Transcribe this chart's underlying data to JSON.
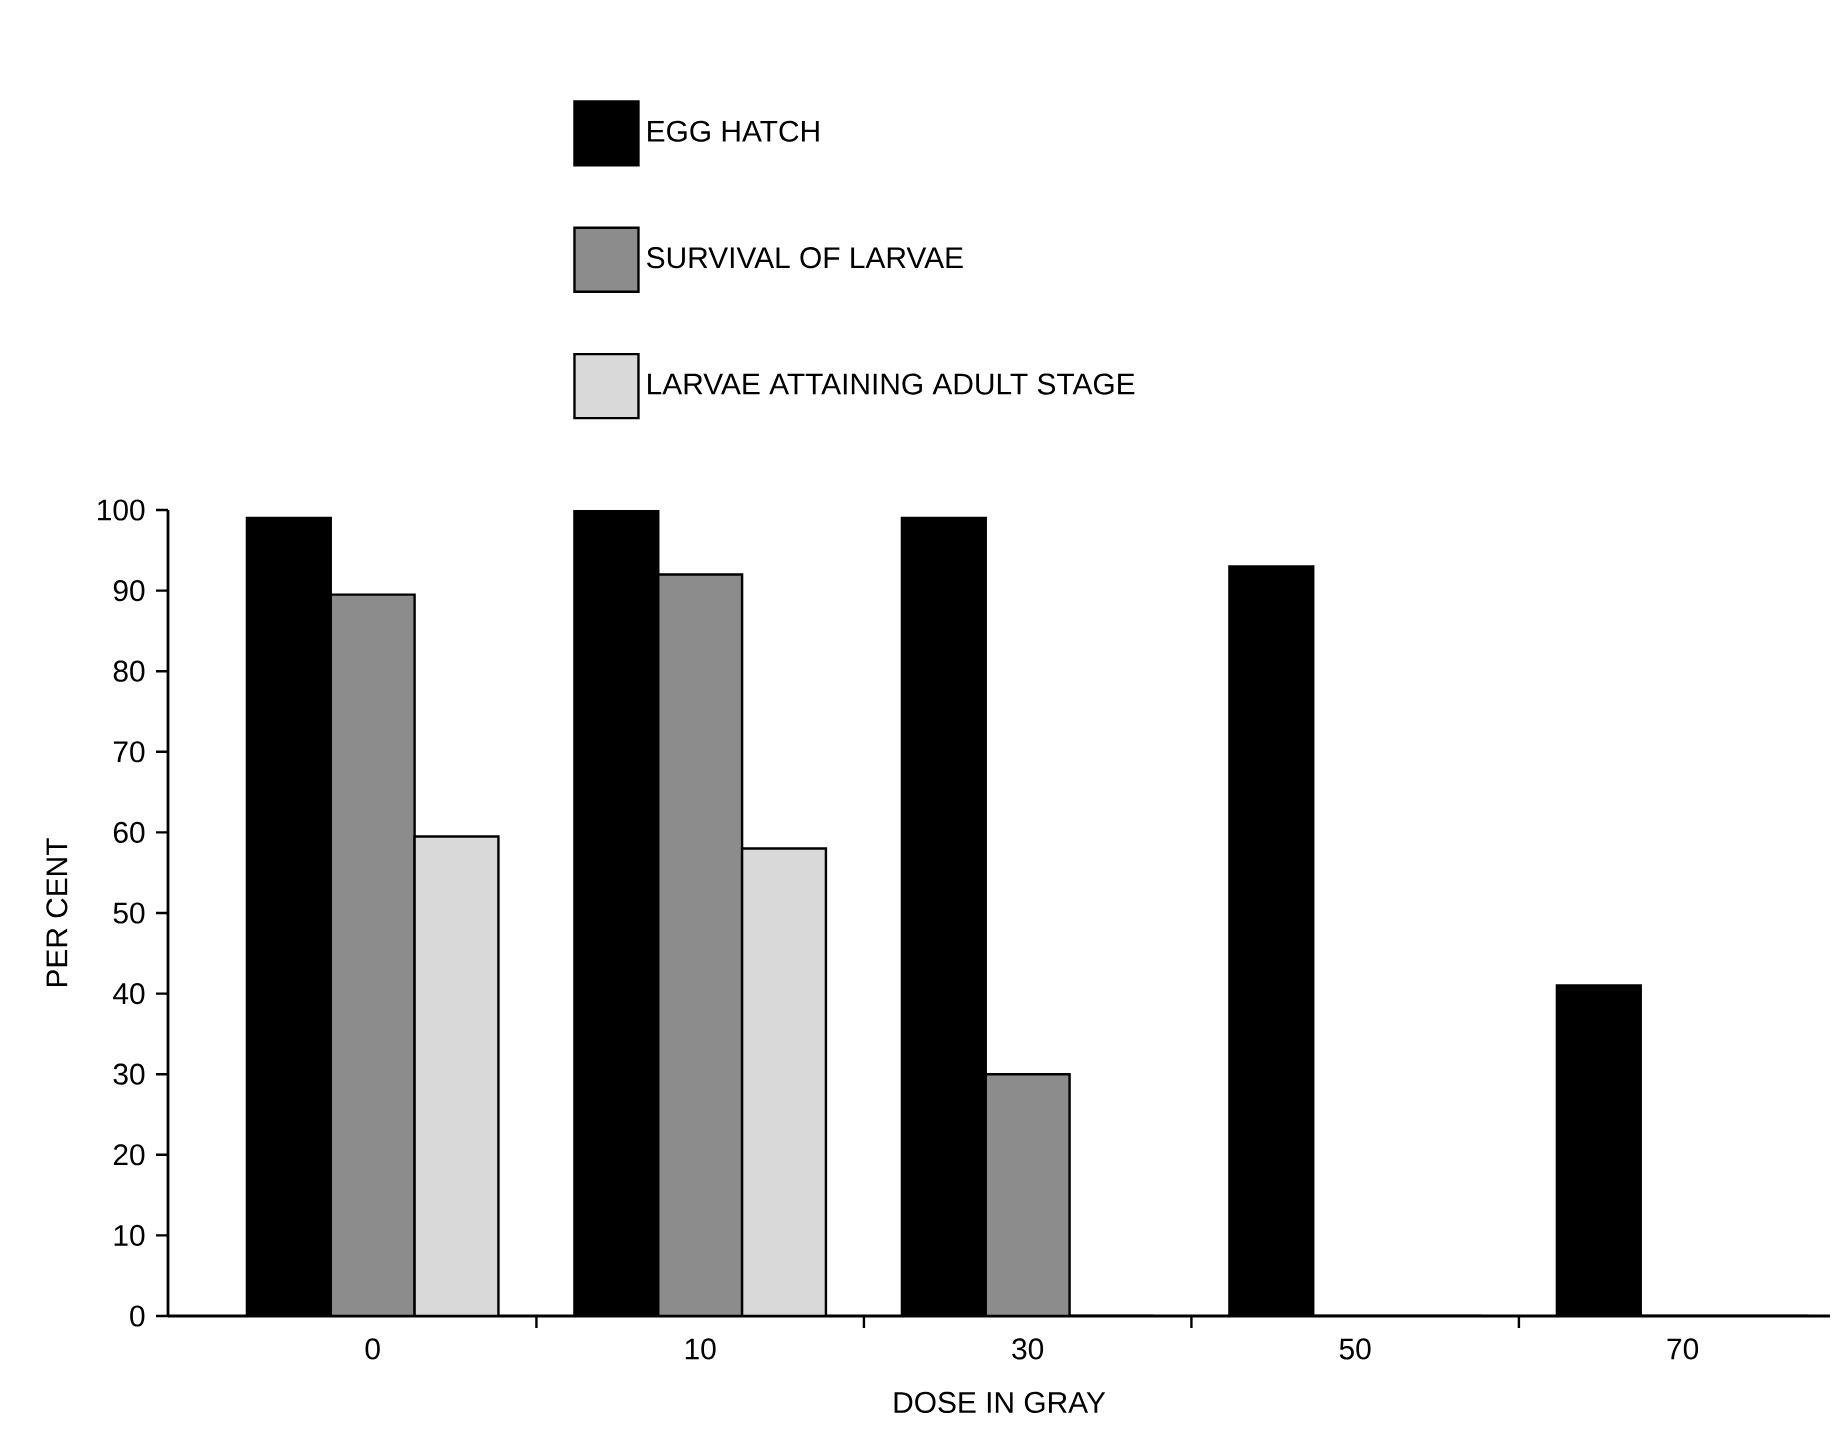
{
  "chart_data": {
    "type": "bar",
    "xlabel": "DOSE IN GRAY",
    "ylabel": "PER CENT",
    "categories": [
      "0",
      "10",
      "30",
      "50",
      "70"
    ],
    "series": [
      {
        "name": "EGG HATCH",
        "color": "#000000",
        "values": [
          99,
          100,
          99,
          93,
          41
        ]
      },
      {
        "name": "SURVIVAL OF LARVAE",
        "color": "#8c8c8c",
        "values": [
          89.5,
          92,
          30,
          0,
          0
        ]
      },
      {
        "name": "LARVAE ATTAINING ADULT STAGE",
        "color": "#d9d9d9",
        "values": [
          59.5,
          58,
          0,
          0,
          0
        ]
      }
    ],
    "ylim": [
      0,
      100
    ],
    "yticks": [
      0,
      10,
      20,
      30,
      40,
      50,
      60,
      70,
      80,
      90,
      100
    ],
    "legend": "top",
    "grid": false
  }
}
